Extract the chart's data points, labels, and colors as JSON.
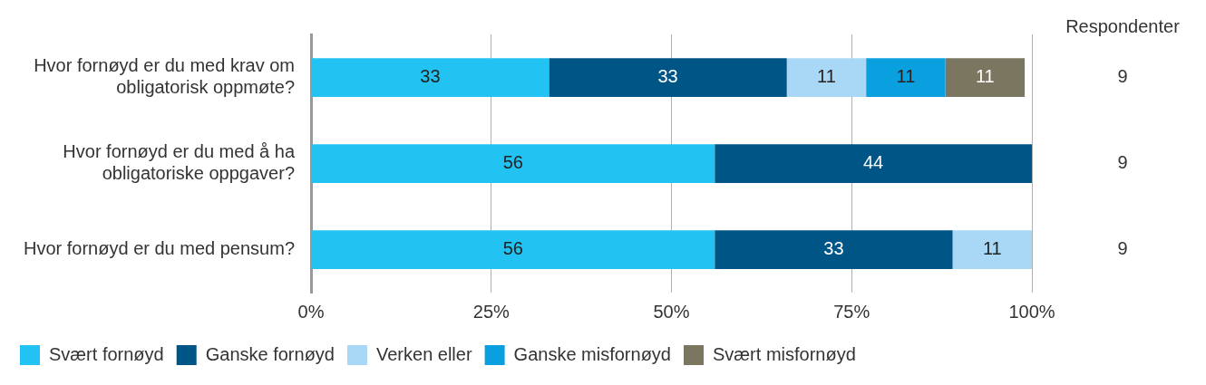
{
  "chart_data": {
    "type": "bar",
    "orientation": "horizontal",
    "stacked": true,
    "categories": [
      "Hvor fornøyd er du med krav om obligatorisk oppmøte?",
      "Hvor fornøyd er du med å ha obligatoriske oppgaver?",
      "Hvor fornøyd er du med pensum?"
    ],
    "series": [
      {
        "name": "Svært fornøyd",
        "color": "#22c3f3",
        "values": [
          33,
          56,
          56
        ]
      },
      {
        "name": "Ganske fornøyd",
        "color": "#005587",
        "values": [
          33,
          44,
          33
        ]
      },
      {
        "name": "Verken eller",
        "color": "#a8d8f5",
        "values": [
          11,
          null,
          11
        ]
      },
      {
        "name": "Ganske misfornøyd",
        "color": "#0aa0e0",
        "values": [
          11,
          null,
          null
        ]
      },
      {
        "name": "Svært misfornøyd",
        "color": "#7a7660",
        "values": [
          11,
          null,
          null
        ]
      }
    ],
    "xlim": [
      0,
      100
    ],
    "xticks": [
      {
        "value": 0,
        "label": "0%"
      },
      {
        "value": 25,
        "label": "25%"
      },
      {
        "value": 50,
        "label": "50%"
      },
      {
        "value": 75,
        "label": "75%"
      },
      {
        "value": 100,
        "label": "100%"
      }
    ],
    "grid": "x",
    "legend": "bottom",
    "data_labels": true,
    "annotations": [
      "Respondenter",
      "9",
      "9",
      "9"
    ]
  }
}
